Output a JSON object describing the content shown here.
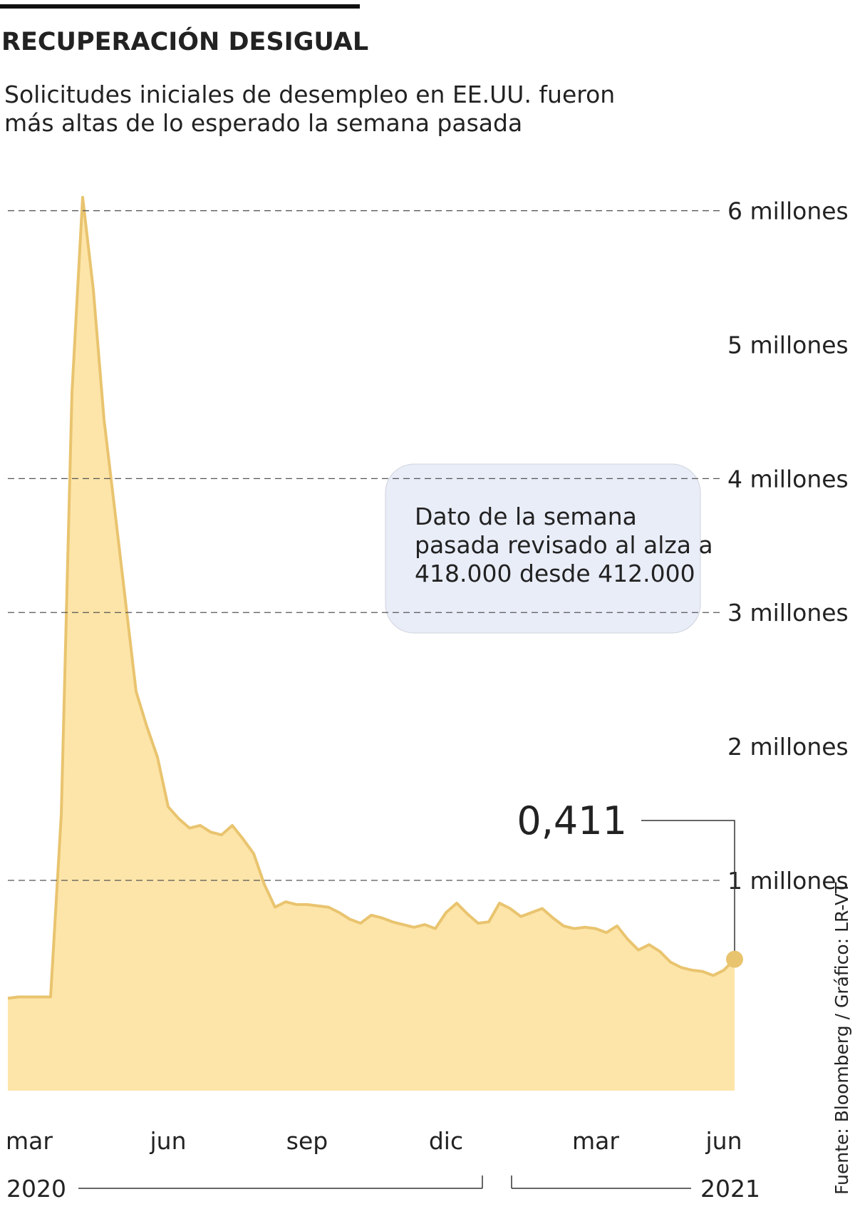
{
  "chart_data": {
    "type": "area",
    "title": "RECUPERACIÓN DESIGUAL",
    "subtitle": [
      "Solicitudes iniciales de desempleo en EE.UU. fueron",
      "más altas de lo esperado la semana pasada"
    ],
    "annotation": [
      "Dato de la semana",
      "pasada revisado al alza a",
      "418.000 desde 412.000"
    ],
    "source": "Fuente: Bloomberg / Gráfico: LR-VT",
    "year_labels": [
      "2020",
      "2021"
    ],
    "categories": [
      null,
      null,
      "mar",
      null,
      null,
      null,
      null,
      null,
      null,
      null,
      null,
      null,
      null,
      null,
      null,
      "jun",
      null,
      null,
      null,
      null,
      null,
      null,
      null,
      null,
      null,
      null,
      null,
      null,
      "sep",
      null,
      null,
      null,
      null,
      null,
      null,
      null,
      null,
      null,
      null,
      null,
      null,
      "dic",
      null,
      null,
      null,
      null,
      null,
      null,
      null,
      null,
      null,
      null,
      null,
      null,
      null,
      "mar",
      null,
      null,
      null,
      null,
      null,
      null,
      null,
      null,
      null,
      null,
      null,
      "jun",
      null
    ],
    "values": [
      0.12,
      0.13,
      0.13,
      0.13,
      0.13,
      1.49,
      4.64,
      6.1,
      5.41,
      4.44,
      3.77,
      3.09,
      2.41,
      2.15,
      1.92,
      1.55,
      1.46,
      1.39,
      1.41,
      1.36,
      1.34,
      1.41,
      1.31,
      1.2,
      0.97,
      0.8,
      0.84,
      0.82,
      0.82,
      0.81,
      0.8,
      0.76,
      0.71,
      0.68,
      0.74,
      0.72,
      0.69,
      0.67,
      0.65,
      0.67,
      0.64,
      0.76,
      0.83,
      0.75,
      0.68,
      0.69,
      0.83,
      0.79,
      0.73,
      0.76,
      0.79,
      0.72,
      0.66,
      0.64,
      0.65,
      0.64,
      0.61,
      0.66,
      0.56,
      0.48,
      0.52,
      0.47,
      0.39,
      0.35,
      0.33,
      0.32,
      0.29,
      0.33,
      0.411
    ],
    "value_labels": [
      null,
      null,
      null,
      null,
      null,
      null,
      null,
      null,
      null,
      null,
      null,
      null,
      null,
      null,
      null,
      null,
      null,
      null,
      null,
      null,
      null,
      null,
      null,
      null,
      null,
      null,
      null,
      null,
      null,
      null,
      null,
      null,
      null,
      null,
      null,
      null,
      null,
      null,
      null,
      null,
      null,
      null,
      null,
      null,
      null,
      null,
      null,
      null,
      null,
      null,
      null,
      null,
      null,
      null,
      null,
      null,
      null,
      null,
      null,
      null,
      null,
      null,
      null,
      null,
      null,
      null,
      null,
      null,
      "0,411"
    ],
    "color": "#e9c46f",
    "fill": "#fde5a9",
    "ylim": [
      -0.57,
      6.2
    ],
    "yticks": [
      {
        "value": 1,
        "label": "1 millones"
      },
      {
        "value": 2,
        "label": "2 millones"
      },
      {
        "value": 3,
        "label": "3 millones"
      },
      {
        "value": 4,
        "label": "4 millones"
      },
      {
        "value": 5,
        "label": "5 millones"
      },
      {
        "value": 6,
        "label": "6 millones"
      }
    ],
    "grid_values": [
      1,
      3,
      4,
      6
    ]
  }
}
